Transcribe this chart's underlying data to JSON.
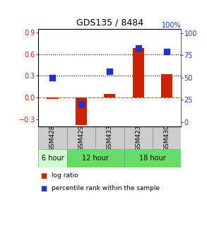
{
  "title": "GDS135 / 8484",
  "samples": [
    "GSM428",
    "GSM429",
    "GSM433",
    "GSM423",
    "GSM430"
  ],
  "log_ratio": [
    -0.02,
    -0.38,
    0.05,
    0.68,
    0.32
  ],
  "percentile_rank_pct": [
    50,
    20,
    57,
    83,
    79
  ],
  "ylim_left": [
    -0.4,
    0.95
  ],
  "ylim_right": [
    -5,
    105
  ],
  "yticks_left": [
    -0.3,
    0.0,
    0.3,
    0.6,
    0.9
  ],
  "yticks_right": [
    0,
    25,
    50,
    75,
    100
  ],
  "bar_color": "#cc2200",
  "dot_color": "#2233cc",
  "bar_width": 0.4,
  "dot_size": 40,
  "background_color": "#ffffff",
  "plot_bg_color": "#ffffff",
  "left_label_color": "#cc2200",
  "right_label_color": "#2233cc",
  "title_color": "#000000",
  "time_6_color": "#ccffcc",
  "time_12_color": "#66dd66",
  "time_18_color": "#66dd66",
  "gsm_bg_color": "#cccccc",
  "time_defs": [
    [
      0,
      1,
      "6 hour"
    ],
    [
      1,
      3,
      "12 hour"
    ],
    [
      3,
      5,
      "18 hour"
    ]
  ]
}
